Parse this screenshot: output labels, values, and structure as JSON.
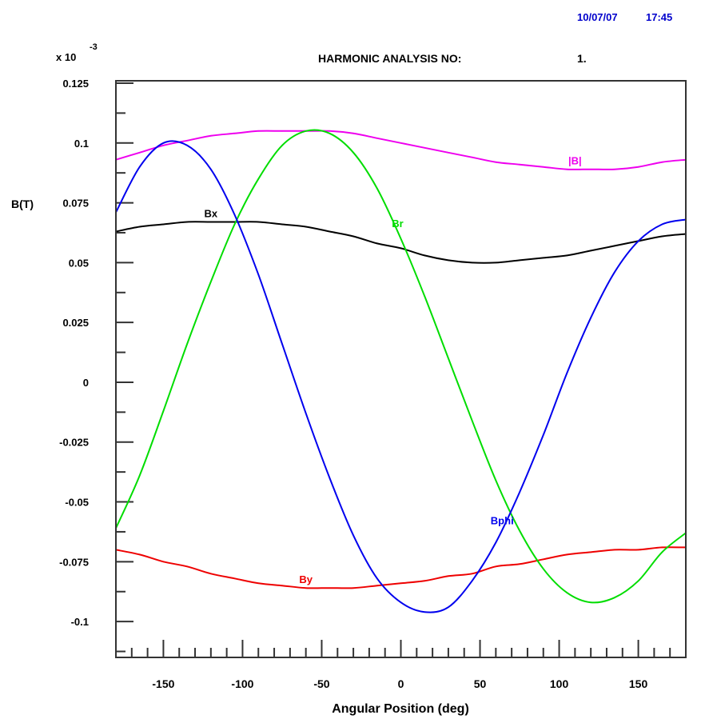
{
  "header": {
    "date": "10/07/07",
    "time": "17:45",
    "title_label": "HARMONIC ANALYSIS NO:",
    "title_number": "1."
  },
  "colors": {
    "Bx": "#000000",
    "By": "#ee0000",
    "Br": "#00dd00",
    "Bphi": "#0000ee",
    "Bmag": "#ee00ee",
    "datestamp": "#0000cc"
  },
  "chart_data": {
    "type": "line",
    "title": "HARMONIC ANALYSIS NO: 1.",
    "xlabel": "Angular Position (deg)",
    "ylabel": "B(T)",
    "y_multiplier_label": "x 10",
    "y_multiplier_exponent": "-3",
    "xlim": [
      -180,
      180
    ],
    "ylim": [
      -0.115,
      0.126
    ],
    "x_ticks": [
      -150,
      -100,
      -50,
      0,
      50,
      100,
      150
    ],
    "x_tick_labels": [
      "-150",
      "-100",
      "-50",
      "0",
      "50",
      "100",
      "150"
    ],
    "y_ticks": [
      0.125,
      0.1,
      0.075,
      0.05,
      0.025,
      0,
      -0.025,
      -0.05,
      -0.075,
      -0.1
    ],
    "y_tick_labels": [
      "0.125",
      "0.1",
      "0.075",
      "0.05",
      "0.025",
      "0",
      "-0.025",
      "-0.05",
      "-0.075",
      "-0.1"
    ],
    "x": [
      -180,
      -165,
      -150,
      -135,
      -120,
      -105,
      -90,
      -75,
      -60,
      -45,
      -30,
      -15,
      0,
      15,
      30,
      45,
      60,
      75,
      90,
      105,
      120,
      135,
      150,
      165,
      180
    ],
    "series": [
      {
        "name": "|B|",
        "color": "#ee00ee",
        "label_x": 110,
        "values": [
          0.093,
          0.096,
          0.099,
          0.101,
          0.103,
          0.104,
          0.105,
          0.105,
          0.105,
          0.105,
          0.104,
          0.102,
          0.1,
          0.098,
          0.096,
          0.094,
          0.092,
          0.091,
          0.09,
          0.089,
          0.089,
          0.089,
          0.09,
          0.092,
          0.093
        ]
      },
      {
        "name": "Bx",
        "color": "#000000",
        "label_x": -120,
        "values": [
          0.063,
          0.065,
          0.066,
          0.067,
          0.067,
          0.067,
          0.067,
          0.066,
          0.065,
          0.063,
          0.061,
          0.058,
          0.056,
          0.053,
          0.051,
          0.05,
          0.05,
          0.051,
          0.052,
          0.053,
          0.055,
          0.057,
          0.059,
          0.061,
          0.062
        ]
      },
      {
        "name": "By",
        "color": "#ee0000",
        "label_x": -60,
        "values": [
          -0.07,
          -0.072,
          -0.075,
          -0.077,
          -0.08,
          -0.082,
          -0.084,
          -0.085,
          -0.086,
          -0.086,
          -0.086,
          -0.085,
          -0.084,
          -0.083,
          -0.081,
          -0.08,
          -0.077,
          -0.076,
          -0.074,
          -0.072,
          -0.071,
          -0.07,
          -0.07,
          -0.069,
          -0.069
        ]
      },
      {
        "name": "Br",
        "color": "#00dd00",
        "label_x": -2,
        "values": [
          -0.061,
          -0.039,
          -0.012,
          0.016,
          0.042,
          0.066,
          0.085,
          0.099,
          0.105,
          0.104,
          0.096,
          0.081,
          0.06,
          0.036,
          0.01,
          -0.016,
          -0.041,
          -0.062,
          -0.078,
          -0.088,
          -0.092,
          -0.09,
          -0.083,
          -0.071,
          -0.063
        ]
      },
      {
        "name": "Bphi",
        "color": "#0000ee",
        "label_x": 64,
        "values": [
          0.071,
          0.09,
          0.1,
          0.099,
          0.089,
          0.07,
          0.045,
          0.016,
          -0.013,
          -0.04,
          -0.064,
          -0.082,
          -0.092,
          -0.096,
          -0.094,
          -0.083,
          -0.067,
          -0.046,
          -0.022,
          0.004,
          0.027,
          0.046,
          0.059,
          0.066,
          0.068
        ]
      }
    ]
  }
}
